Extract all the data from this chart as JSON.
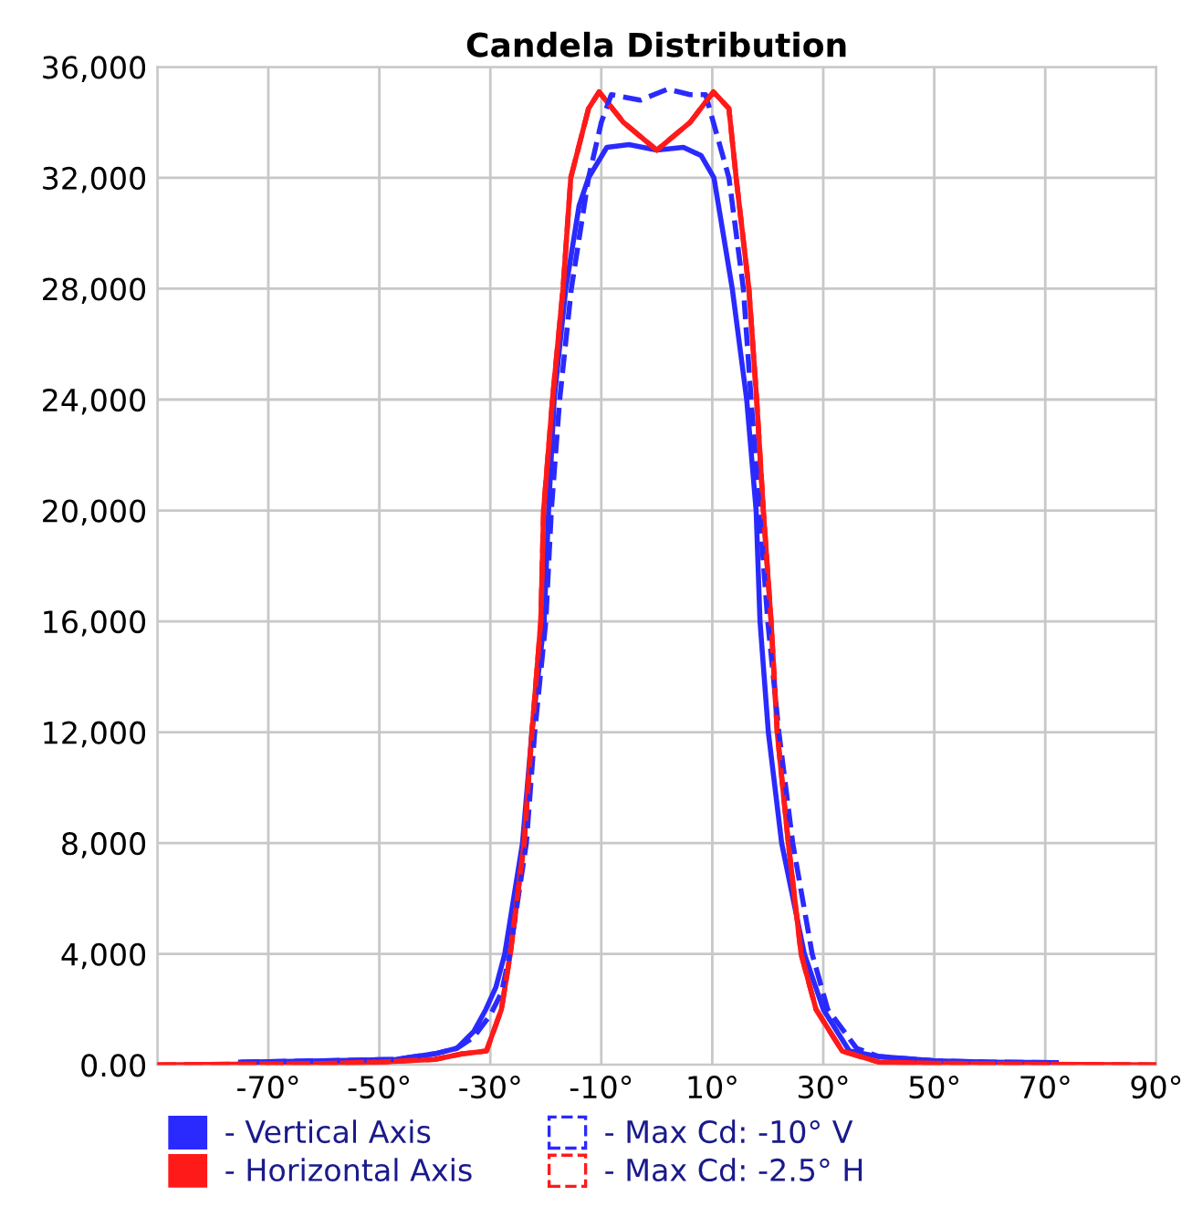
{
  "chart_data": {
    "type": "line",
    "title": "Candela Distribution",
    "xlim": [
      -90,
      90
    ],
    "ylim": [
      0,
      36000
    ],
    "xticks": [
      {
        "value": -90,
        "label": null
      },
      {
        "value": -70,
        "label": "-70°"
      },
      {
        "value": -50,
        "label": "-50°"
      },
      {
        "value": -30,
        "label": "-30°"
      },
      {
        "value": -10,
        "label": "-10°"
      },
      {
        "value": 10,
        "label": "10°"
      },
      {
        "value": 30,
        "label": "30°"
      },
      {
        "value": 50,
        "label": "50°"
      },
      {
        "value": 70,
        "label": "70°"
      },
      {
        "value": 90,
        "label": "90°"
      }
    ],
    "yticks": [
      {
        "value": 0,
        "label": "0.00"
      },
      {
        "value": 4000,
        "label": "4,000"
      },
      {
        "value": 8000,
        "label": "8,000"
      },
      {
        "value": 12000,
        "label": "12,000"
      },
      {
        "value": 16000,
        "label": "16,000"
      },
      {
        "value": 20000,
        "label": "20,000"
      },
      {
        "value": 24000,
        "label": "24,000"
      },
      {
        "value": 28000,
        "label": "28,000"
      },
      {
        "value": 32000,
        "label": "32,000"
      },
      {
        "value": 36000,
        "label": "36,000"
      }
    ],
    "grid": true,
    "legend": "bottom",
    "series": [
      {
        "name": "- Vertical Axis",
        "color": "#2a2aff",
        "line_style": "solid",
        "x": [
          -75,
          -60,
          -47,
          -40,
          -36,
          -33,
          -30.8,
          -29,
          -27.4,
          -24.2,
          -22.5,
          -20.3,
          -19.5,
          -18.5,
          -16.4,
          -14,
          -12.3,
          -9,
          -5,
          0,
          4.8,
          8,
          10.3,
          13.6,
          16.2,
          17.9,
          18.6,
          20.1,
          22.5,
          26.6,
          30,
          34.7,
          40,
          50,
          60,
          72
        ],
        "values": [
          100,
          150,
          200,
          400,
          600,
          1200,
          2000,
          2800,
          4000,
          8000,
          12000,
          16000,
          20000,
          24000,
          28000,
          31000,
          32000,
          33100,
          33200,
          33000,
          33100,
          32800,
          32000,
          28000,
          24000,
          20000,
          16000,
          12000,
          8000,
          4000,
          2000,
          500,
          300,
          150,
          100,
          80
        ]
      },
      {
        "name": "- Horizontal Axis",
        "color": "#ff1a1a",
        "line_style": "solid",
        "x": [
          -90,
          -60,
          -50,
          -40,
          -35,
          -30.7,
          -28,
          -26.4,
          -23.9,
          -22.5,
          -20.9,
          -20.4,
          -18.8,
          -16.9,
          -15.5,
          -12.3,
          -10.4,
          -6,
          0,
          6,
          10.2,
          13,
          14.3,
          16.6,
          18,
          19.2,
          20.6,
          21.7,
          23.7,
          26,
          28.7,
          33.4,
          40,
          50,
          60,
          70,
          90
        ],
        "values": [
          0,
          50,
          100,
          200,
          400,
          500,
          2000,
          4000,
          8000,
          12000,
          16000,
          20000,
          24000,
          28000,
          32000,
          34500,
          35100,
          34000,
          33000,
          34000,
          35100,
          34500,
          32000,
          28000,
          24000,
          20000,
          16000,
          12000,
          8000,
          4000,
          2000,
          500,
          100,
          60,
          40,
          20,
          0
        ]
      },
      {
        "name": "- Max Cd: -10° V",
        "color": "#2a2aff",
        "line_style": "dashed",
        "x": [
          -75,
          -60,
          -47,
          -40,
          -36,
          -33,
          -30,
          -28,
          -26.5,
          -23.5,
          -22,
          -20,
          -19,
          -17.5,
          -15.4,
          -12.3,
          -10,
          -8.2,
          -3,
          2,
          6,
          8.8,
          13,
          15.6,
          17,
          18.5,
          20,
          22,
          24.5,
          28,
          30.8,
          36,
          40,
          50,
          60,
          72
        ],
        "values": [
          100,
          150,
          200,
          400,
          600,
          1000,
          1800,
          2600,
          4000,
          8000,
          12000,
          16000,
          20000,
          24000,
          28000,
          32000,
          34000,
          35000,
          34800,
          35200,
          35000,
          35000,
          32000,
          28000,
          24000,
          20000,
          16000,
          12000,
          8000,
          4000,
          2000,
          600,
          300,
          150,
          100,
          80
        ]
      },
      {
        "name": "- Max Cd: -2.5° H",
        "color": "#ff1a1a",
        "line_style": "dashed",
        "x": [
          -90,
          -60,
          -50,
          -40,
          -35,
          -30.7,
          -28,
          -26.4,
          -23.9,
          -22.5,
          -20.9,
          -20.4,
          -18.8,
          -16.9,
          -15.5,
          -12.3,
          -10.4,
          -6,
          0,
          6,
          10.2,
          13,
          14.3,
          16.6,
          18,
          19.2,
          20.6,
          21.7,
          23.7,
          26,
          28.7,
          33.4,
          40,
          50,
          60,
          70,
          90
        ],
        "values": [
          0,
          50,
          100,
          200,
          400,
          500,
          2000,
          4000,
          8000,
          12000,
          16000,
          20000,
          24000,
          28000,
          32000,
          34500,
          35100,
          34000,
          33000,
          34000,
          35100,
          34500,
          32000,
          28000,
          24000,
          20000,
          16000,
          12000,
          8000,
          4000,
          2000,
          500,
          100,
          60,
          40,
          20,
          0
        ]
      }
    ]
  }
}
